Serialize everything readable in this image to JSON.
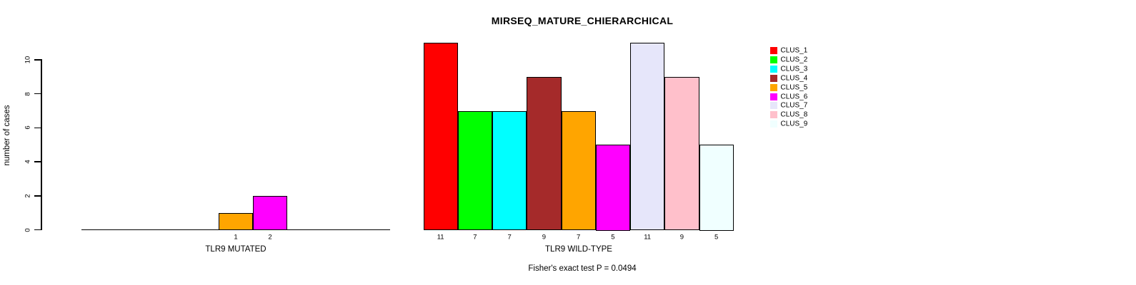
{
  "title": "MIRSEQ_MATURE_CHIERARCHICAL",
  "ylabel": "number of cases",
  "annotation": "Fisher's exact test P = 0.0494",
  "chart_data": {
    "type": "bar",
    "title": "MIRSEQ_MATURE_CHIERARCHICAL",
    "ylabel": "number of cases",
    "ylim": [
      0,
      11.6
    ],
    "yticks": [
      0,
      2,
      4,
      6,
      8,
      10
    ],
    "grid": false,
    "legend_position": "right",
    "categories": [
      "CLUS_1",
      "CLUS_2",
      "CLUS_3",
      "CLUS_4",
      "CLUS_5",
      "CLUS_6",
      "CLUS_7",
      "CLUS_8",
      "CLUS_9"
    ],
    "colors": [
      "#FF0000",
      "#00FF00",
      "#00FFFF",
      "#A52A2A",
      "#FFA500",
      "#FF00FF",
      "#E6E6FA",
      "#FFC0CB",
      "#F0FFFF"
    ],
    "groups": [
      {
        "name": "TLR9 MUTATED",
        "values": [
          0,
          0,
          0,
          0,
          1,
          2,
          0,
          0,
          0
        ],
        "bar_labels": [
          "",
          "",
          "",
          "",
          "1",
          "2",
          "",
          "",
          ""
        ]
      },
      {
        "name": "TLR9 WILD-TYPE",
        "values": [
          11,
          7,
          7,
          9,
          7,
          5,
          11,
          9,
          5
        ],
        "bar_labels": [
          "11",
          "7",
          "7",
          "9",
          "7",
          "5",
          "11",
          "9",
          "5"
        ]
      }
    ],
    "annotation": "Fisher's exact test P = 0.0494"
  },
  "legend": {
    "items": [
      {
        "label": "CLUS_1",
        "color": "#FF0000"
      },
      {
        "label": "CLUS_2",
        "color": "#00FF00"
      },
      {
        "label": "CLUS_3",
        "color": "#00FFFF"
      },
      {
        "label": "CLUS_4",
        "color": "#A52A2A"
      },
      {
        "label": "CLUS_5",
        "color": "#FFA500"
      },
      {
        "label": "CLUS_6",
        "color": "#FF00FF"
      },
      {
        "label": "CLUS_7",
        "color": "#E6E6FA"
      },
      {
        "label": "CLUS_8",
        "color": "#FFC0CB"
      },
      {
        "label": "CLUS_9",
        "color": "#F0FFFF"
      }
    ]
  }
}
